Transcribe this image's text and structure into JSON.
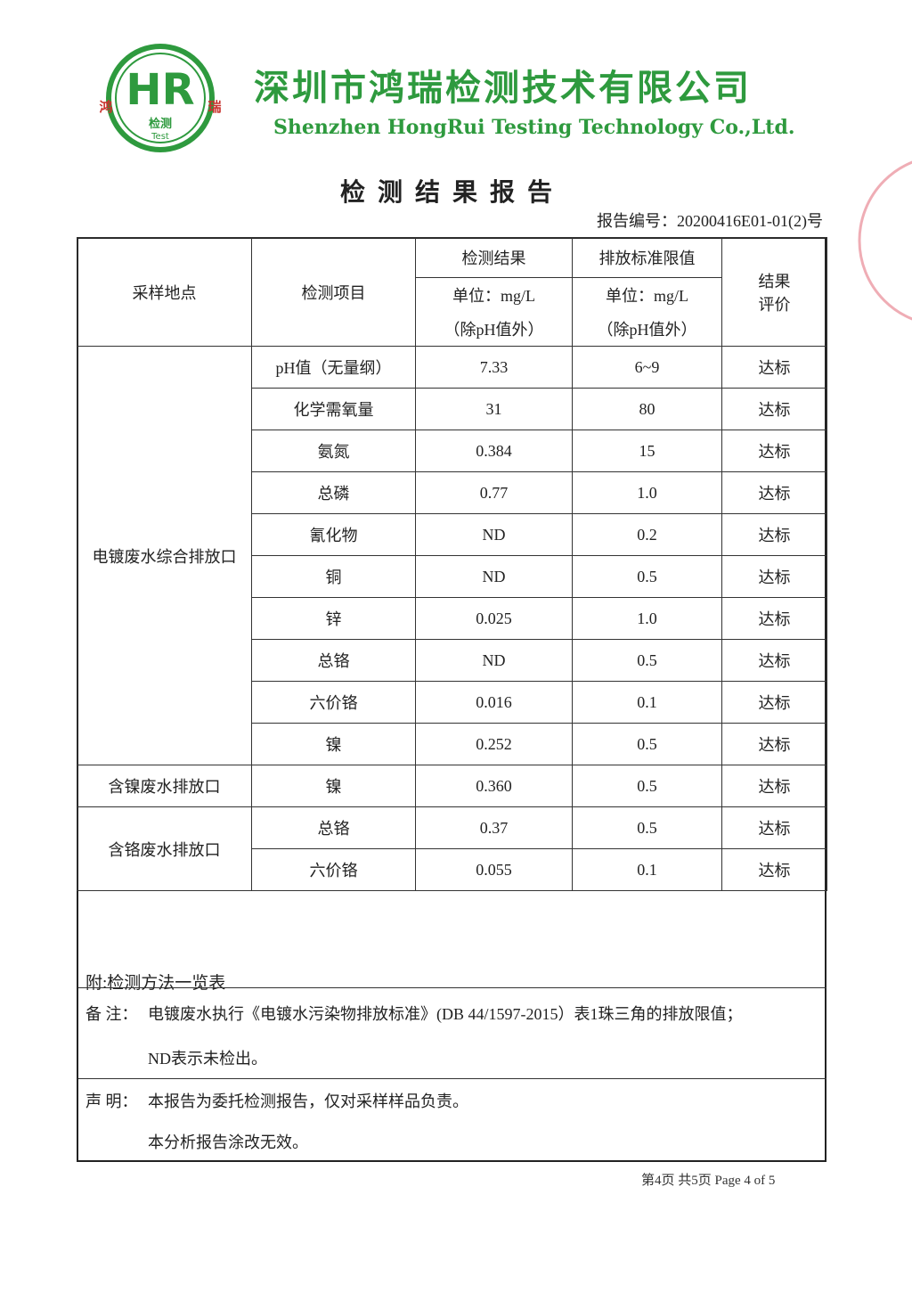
{
  "header": {
    "logo_letters": "HR",
    "logo_left": "鸿",
    "logo_right": "瑞",
    "logo_sub": "检测",
    "logo_test": "Test",
    "company_cn": "深圳市鸿瑞检测技术有限公司",
    "company_en": "Shenzhen HongRui Testing Technology Co.,Ltd."
  },
  "report_title": "检测结果报告",
  "report_number": "报告编号：20200416E01-01(2)号",
  "table": {
    "headers": {
      "location": "采样地点",
      "item": "检测项目",
      "result": "检测结果",
      "limit": "排放标准限值",
      "unit_result": "单位：mg/L",
      "note_result": "（除pH值外）",
      "unit_limit": "单位：mg/L",
      "note_limit": "（除pH值外）",
      "evaluation": "结果评价"
    },
    "groups": [
      {
        "location": "电镀废水综合排放口",
        "rows": [
          [
            "pH值（无量纲）",
            "7.33",
            "6~9",
            "达标"
          ],
          [
            "化学需氧量",
            "31",
            "80",
            "达标"
          ],
          [
            "氨氮",
            "0.384",
            "15",
            "达标"
          ],
          [
            "总磷",
            "0.77",
            "1.0",
            "达标"
          ],
          [
            "氰化物",
            "ND",
            "0.2",
            "达标"
          ],
          [
            "铜",
            "ND",
            "0.5",
            "达标"
          ],
          [
            "锌",
            "0.025",
            "1.0",
            "达标"
          ],
          [
            "总铬",
            "ND",
            "0.5",
            "达标"
          ],
          [
            "六价铬",
            "0.016",
            "0.1",
            "达标"
          ],
          [
            "镍",
            "0.252",
            "0.5",
            "达标"
          ]
        ]
      },
      {
        "location": "含镍废水排放口",
        "rows": [
          [
            "镍",
            "0.360",
            "0.5",
            "达标"
          ]
        ]
      },
      {
        "location": "含铬废水排放口",
        "rows": [
          [
            "总铬",
            "0.37",
            "0.5",
            "达标"
          ],
          [
            "六价铬",
            "0.055",
            "0.1",
            "达标"
          ]
        ]
      }
    ]
  },
  "appendix": "附:检测方法一览表",
  "remarks": {
    "label": "备 注：",
    "lines": [
      "电镀废水执行《电镀水污染物排放标准》(DB 44/1597-2015）表1珠三角的排放限值；",
      "ND表示未检出。"
    ]
  },
  "statement": {
    "label": "声 明：",
    "lines": [
      "本报告为委托检测报告，仅对采样样品负责。",
      "本分析报告涂改无效。"
    ]
  },
  "footer": "第4页 共5页 Page 4 of 5"
}
